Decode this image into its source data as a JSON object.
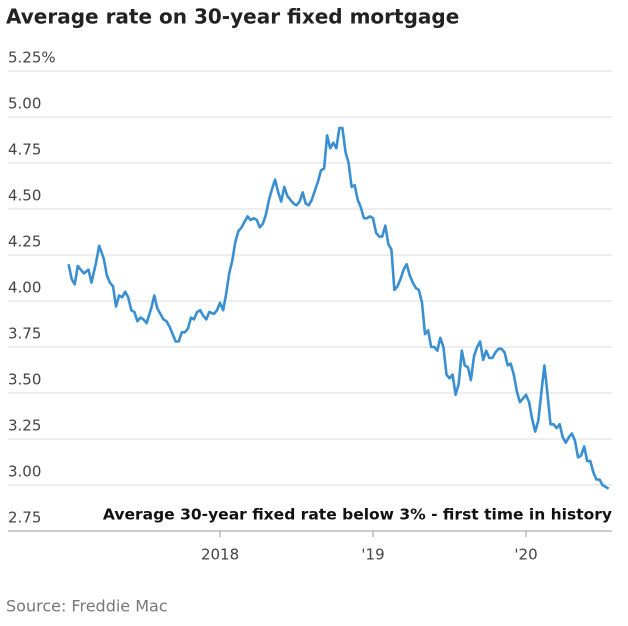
{
  "chart_data": {
    "type": "line",
    "title": "Average rate on 30-year fixed mortgage",
    "annotation": "Average 30-year fixed rate below 3% - first time in history",
    "source": "Source: Freddie Mac",
    "color": "#3a8fd1",
    "x": [
      2017.01,
      2017.03,
      2017.05,
      2017.07,
      2017.09,
      2017.11,
      2017.14,
      2017.16,
      2017.19,
      2017.21,
      2017.24,
      2017.26,
      2017.28,
      2017.3,
      2017.32,
      2017.34,
      2017.36,
      2017.38,
      2017.4,
      2017.42,
      2017.44,
      2017.46,
      2017.48,
      2017.5,
      2017.52,
      2017.55,
      2017.57,
      2017.59,
      2017.61,
      2017.63,
      2017.65,
      2017.67,
      2017.69,
      2017.71,
      2017.73,
      2017.75,
      2017.77,
      2017.79,
      2017.81,
      2017.83,
      2017.85,
      2017.87,
      2017.89,
      2017.91,
      2017.93,
      2017.96,
      2017.98,
      2018.0,
      2018.02,
      2018.04,
      2018.06,
      2018.08,
      2018.1,
      2018.12,
      2018.14,
      2018.16,
      2018.18,
      2018.2,
      2018.22,
      2018.24,
      2018.26,
      2018.28,
      2018.3,
      2018.32,
      2018.34,
      2018.36,
      2018.38,
      2018.4,
      2018.42,
      2018.44,
      2018.46,
      2018.48,
      2018.5,
      2018.52,
      2018.54,
      2018.56,
      2018.58,
      2018.6,
      2018.62,
      2018.64,
      2018.66,
      2018.68,
      2018.7,
      2018.72,
      2018.74,
      2018.76,
      2018.78,
      2018.8,
      2018.82,
      2018.84,
      2018.86,
      2018.88,
      2018.9,
      2018.92,
      2018.94,
      2018.96,
      2018.98,
      2019.0,
      2019.02,
      2019.04,
      2019.06,
      2019.08,
      2019.1,
      2019.12,
      2019.14,
      2019.16,
      2019.18,
      2019.2,
      2019.22,
      2019.24,
      2019.26,
      2019.28,
      2019.3,
      2019.32,
      2019.34,
      2019.36,
      2019.38,
      2019.4,
      2019.42,
      2019.44,
      2019.46,
      2019.48,
      2019.5,
      2019.52,
      2019.54,
      2019.56,
      2019.58,
      2019.6,
      2019.62,
      2019.64,
      2019.66,
      2019.68,
      2019.7,
      2019.72,
      2019.74,
      2019.76,
      2019.78,
      2019.8,
      2019.82,
      2019.84,
      2019.86,
      2019.88,
      2019.9,
      2019.92,
      2019.94,
      2019.96,
      2019.98,
      2020.0,
      2020.02,
      2020.04,
      2020.06,
      2020.08,
      2020.1,
      2020.12,
      2020.14,
      2020.16,
      2020.18,
      2020.2,
      2020.22,
      2020.24,
      2020.26,
      2020.28,
      2020.3,
      2020.32,
      2020.34,
      2020.36,
      2020.38,
      2020.4,
      2020.42,
      2020.44,
      2020.46,
      2020.48,
      2020.5,
      2020.54
    ],
    "values": [
      4.2,
      4.12,
      4.09,
      4.19,
      4.17,
      4.15,
      4.17,
      4.1,
      4.21,
      4.3,
      4.23,
      4.14,
      4.1,
      4.08,
      3.97,
      4.03,
      4.02,
      4.05,
      4.02,
      3.95,
      3.94,
      3.89,
      3.91,
      3.9,
      3.88,
      3.96,
      4.03,
      3.96,
      3.93,
      3.9,
      3.89,
      3.86,
      3.82,
      3.78,
      3.78,
      3.83,
      3.83,
      3.85,
      3.91,
      3.9,
      3.94,
      3.95,
      3.92,
      3.9,
      3.94,
      3.93,
      3.95,
      3.99,
      3.95,
      4.04,
      4.15,
      4.22,
      4.32,
      4.38,
      4.4,
      4.43,
      4.46,
      4.44,
      4.45,
      4.44,
      4.4,
      4.42,
      4.47,
      4.55,
      4.61,
      4.66,
      4.59,
      4.54,
      4.62,
      4.57,
      4.55,
      4.53,
      4.52,
      4.54,
      4.59,
      4.53,
      4.52,
      4.55,
      4.6,
      4.65,
      4.71,
      4.72,
      4.9,
      4.83,
      4.86,
      4.83,
      4.94,
      4.94,
      4.81,
      4.75,
      4.62,
      4.63,
      4.55,
      4.51,
      4.45,
      4.45,
      4.46,
      4.45,
      4.37,
      4.35,
      4.35,
      4.41,
      4.31,
      4.28,
      4.06,
      4.08,
      4.12,
      4.17,
      4.2,
      4.14,
      4.1,
      4.07,
      4.06,
      3.99,
      3.82,
      3.84,
      3.75,
      3.75,
      3.73,
      3.8,
      3.75,
      3.6,
      3.58,
      3.6,
      3.49,
      3.55,
      3.73,
      3.65,
      3.64,
      3.57,
      3.7,
      3.75,
      3.78,
      3.68,
      3.73,
      3.69,
      3.69,
      3.72,
      3.74,
      3.74,
      3.72,
      3.65,
      3.66,
      3.6,
      3.51,
      3.45,
      3.47,
      3.49,
      3.45,
      3.36,
      3.29,
      3.35,
      3.5,
      3.65,
      3.5,
      3.33,
      3.33,
      3.31,
      3.33,
      3.26,
      3.23,
      3.26,
      3.28,
      3.24,
      3.15,
      3.16,
      3.21,
      3.13,
      3.13,
      3.07,
      3.03,
      3.03,
      3.0,
      2.98
    ],
    "xlim": [
      2016.614,
      2020.562
    ],
    "xticks": [
      {
        "value": 2018,
        "label": "2018"
      },
      {
        "value": 2019,
        "label": "'19"
      },
      {
        "value": 2020,
        "label": "'20"
      }
    ],
    "ylim": [
      2.75,
      5.25
    ],
    "yticks": [
      2.75,
      {
        "value": 3,
        "label": "3.00"
      },
      3.25,
      {
        "value": 3.5,
        "label": "3.50"
      },
      3.75,
      {
        "value": 4,
        "label": "4.00"
      },
      4.25,
      {
        "value": 4.5,
        "label": "4.50"
      },
      4.75,
      {
        "value": 5,
        "label": "5.00"
      },
      {
        "value": 5.25,
        "label": "5.25%"
      }
    ],
    "grid": true
  }
}
